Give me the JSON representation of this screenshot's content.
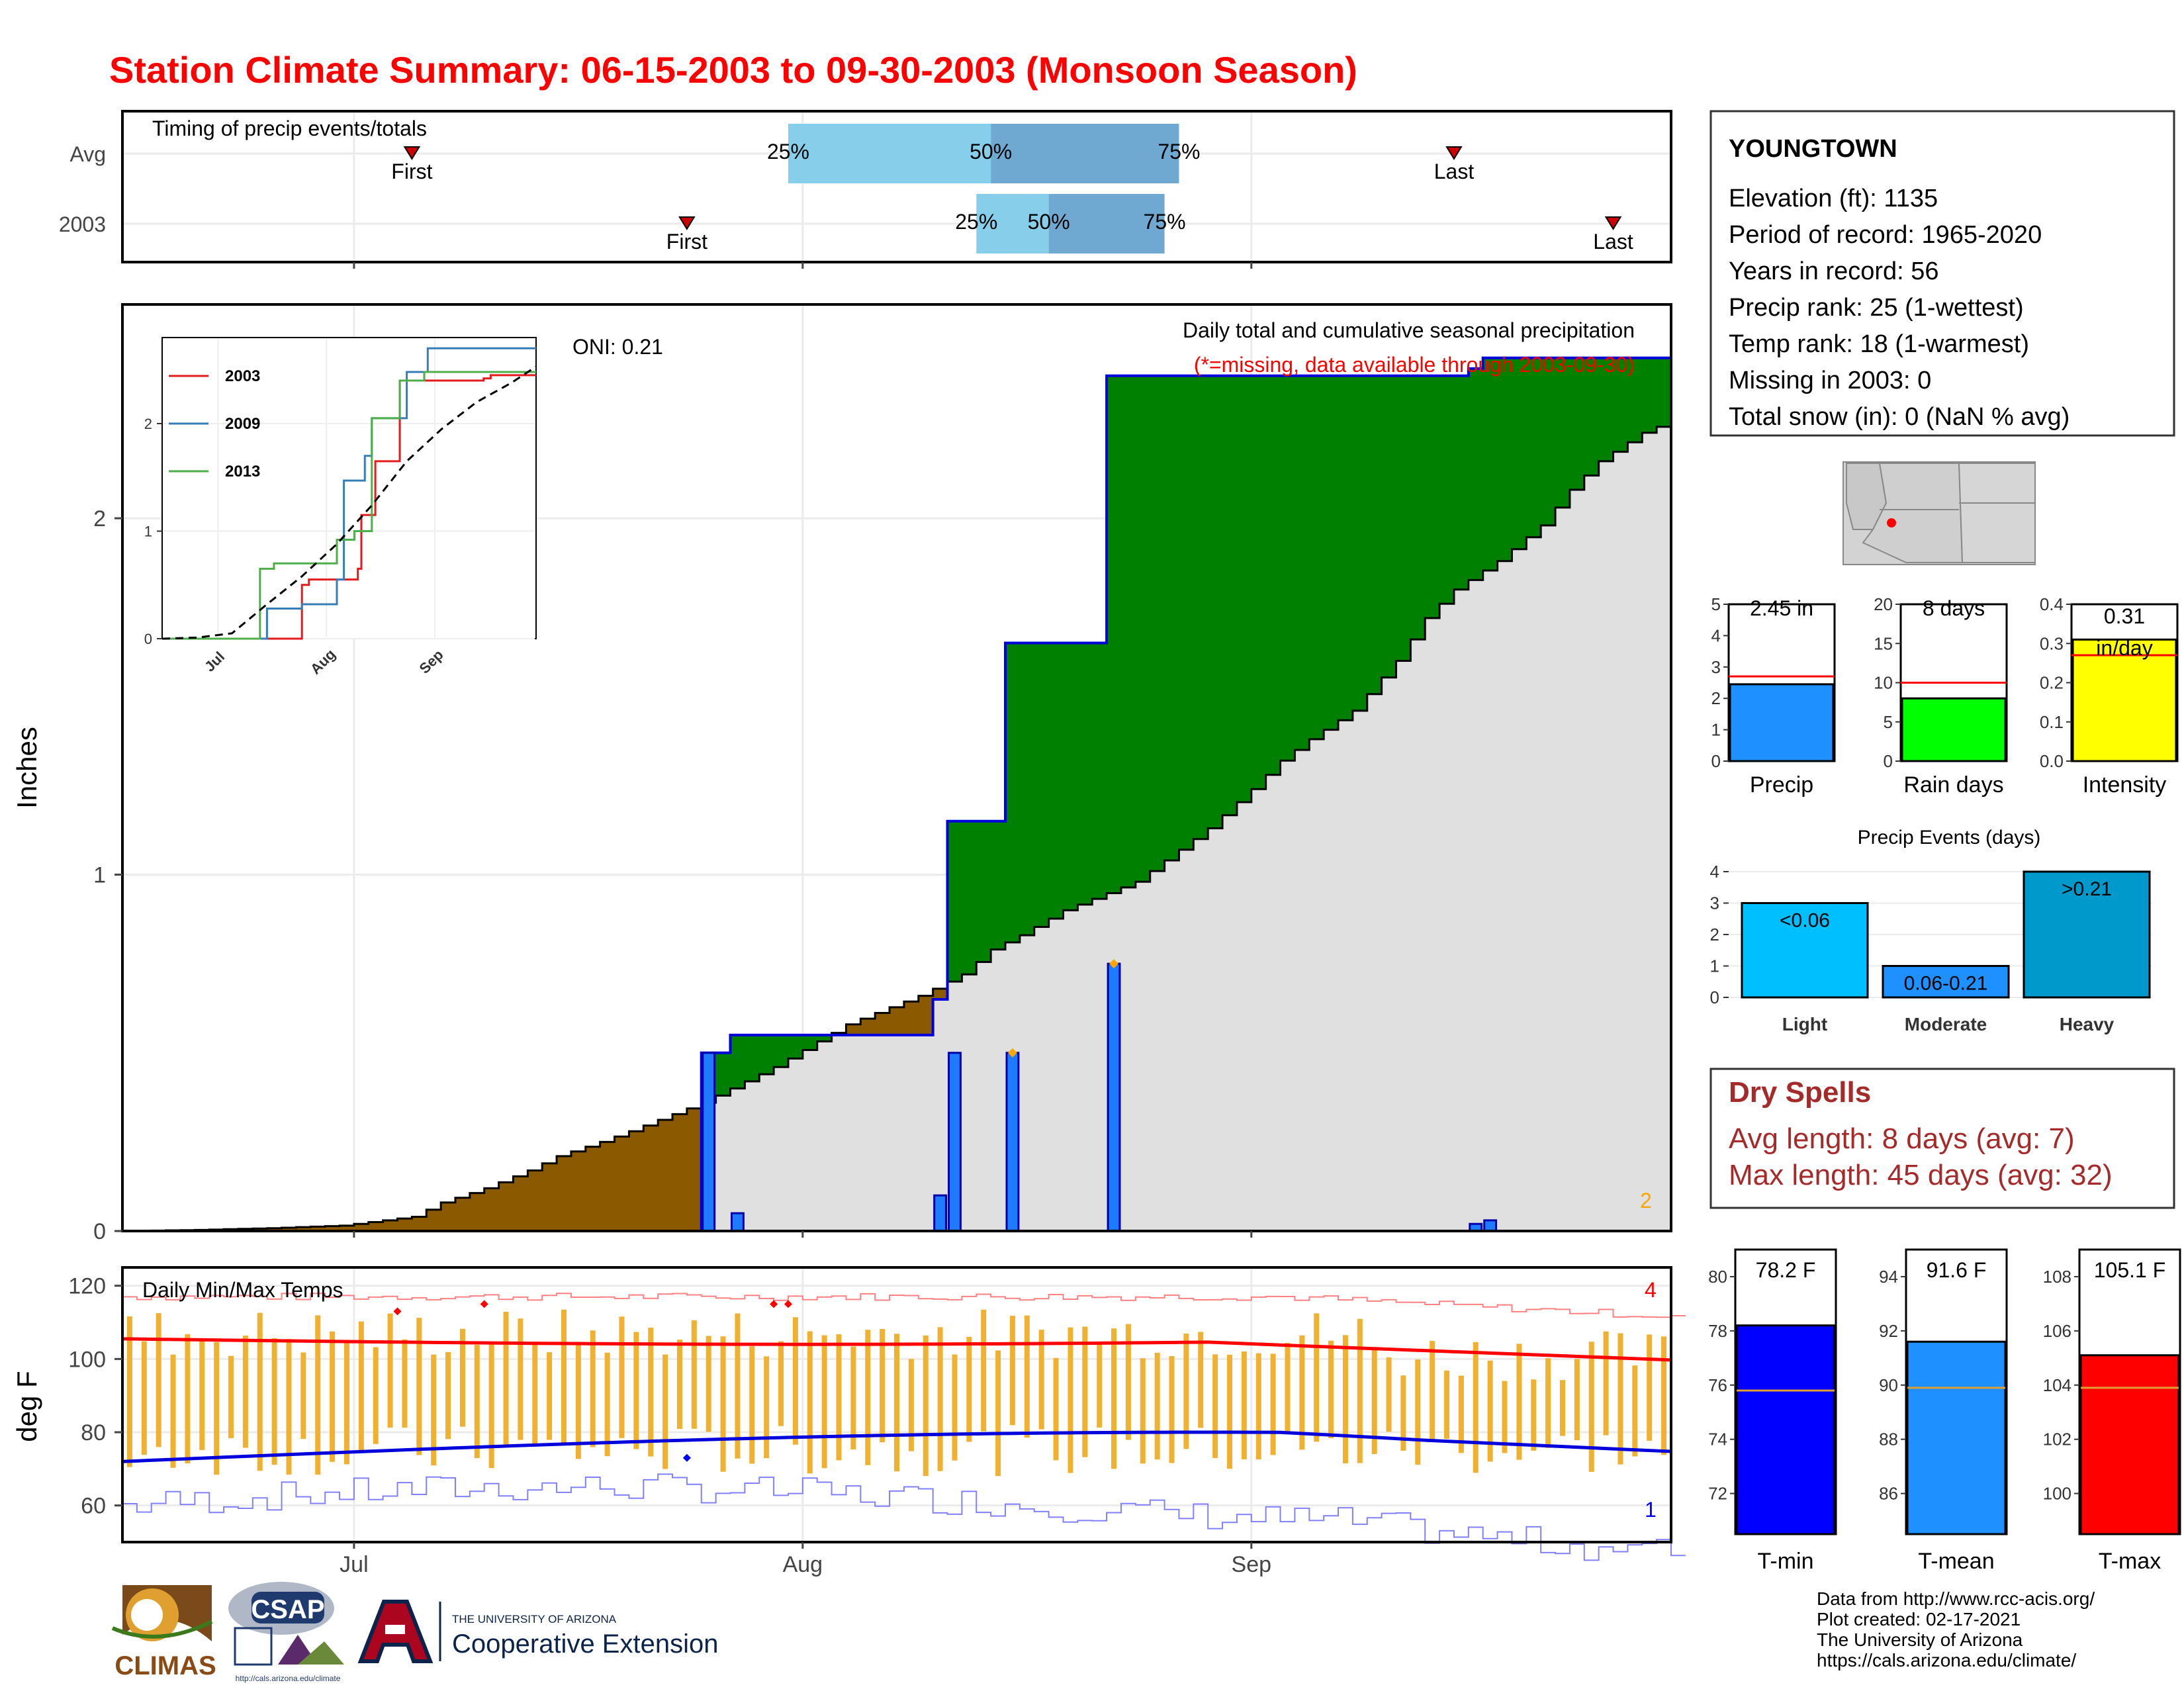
{
  "title": "Station Climate Summary: 06-15-2003 to 09-30-2003 (Monsoon Season)",
  "colors": {
    "title": "#ff0000",
    "brown": "#8B5A00",
    "green": "#008000",
    "grey_fill": "#e0e0e0",
    "blue_line": "#0000dd",
    "daily_bar": "#1e7bff",
    "light_blue": "#87ceeb",
    "steel_blue": "#6fa8d0",
    "temp_bar": "#f0b030",
    "dry_spell": "#a52a2a"
  },
  "chart_data": [
    {
      "id": "timing",
      "type": "bar",
      "title": "Timing of precip events/totals",
      "rows": [
        "Avg",
        "2003"
      ],
      "x_domain": [
        "06-15",
        "09-30"
      ],
      "markers": [
        {
          "row": "Avg",
          "first": "07-05",
          "last": "09-15",
          "q25": "07-31",
          "q50": "08-14",
          "q75": "08-27"
        },
        {
          "row": "2003",
          "first": "07-24",
          "last": "09-26",
          "q25": "08-13",
          "q50": "08-18",
          "q75": "08-26"
        }
      ],
      "labels": {
        "first": "First",
        "last": "Last",
        "q25": "25%",
        "q50": "50%",
        "q75": "75%"
      }
    },
    {
      "id": "precip",
      "type": "area",
      "ylabel": "Inches",
      "y_ticks": [
        "0",
        "1",
        "2"
      ],
      "ylim": [
        0,
        2.6
      ],
      "x_ticks": [
        "Jul",
        "Aug",
        "Sep"
      ],
      "annotation_title": "Daily total and cumulative seasonal precipitation",
      "annotation_missing": "(*=missing, data available through 2003-09-30)",
      "oni": "ONI: 0.21",
      "corner_count": "2",
      "avg_cumulative": [
        [
          0,
          0
        ],
        [
          5,
          0.003
        ],
        [
          10,
          0.008
        ],
        [
          15,
          0.015
        ],
        [
          20,
          0.04
        ],
        [
          22,
          0.08
        ],
        [
          25,
          0.12
        ],
        [
          28,
          0.17
        ],
        [
          30,
          0.21
        ],
        [
          33,
          0.25
        ],
        [
          35,
          0.28
        ],
        [
          40,
          0.36
        ],
        [
          45,
          0.46
        ],
        [
          50,
          0.58
        ],
        [
          55,
          0.66
        ],
        [
          58,
          0.72
        ],
        [
          60,
          0.79
        ],
        [
          62,
          0.83
        ],
        [
          65,
          0.9
        ],
        [
          70,
          0.98
        ],
        [
          75,
          1.13
        ],
        [
          78,
          1.24
        ],
        [
          80,
          1.32
        ],
        [
          82,
          1.38
        ],
        [
          85,
          1.46
        ],
        [
          88,
          1.6
        ],
        [
          90,
          1.72
        ],
        [
          92,
          1.8
        ],
        [
          95,
          1.88
        ],
        [
          98,
          1.98
        ],
        [
          100,
          2.08
        ],
        [
          102,
          2.16
        ],
        [
          105,
          2.24
        ],
        [
          108,
          2.29
        ],
        [
          110,
          2.33
        ],
        [
          113,
          2.43
        ],
        [
          116,
          2.47
        ],
        [
          120,
          2.53
        ]
      ],
      "daily_2003": [
        {
          "day": 40,
          "value": 0.5
        },
        {
          "day": 42,
          "value": 0.05
        },
        {
          "day": 56,
          "value": 0.1
        },
        {
          "day": 57,
          "value": 0.5
        },
        {
          "day": 61,
          "value": 0.5
        },
        {
          "day": 68,
          "value": 0.75
        },
        {
          "day": 93,
          "value": 0.02
        },
        {
          "day": 94,
          "value": 0.03
        }
      ],
      "highlight_days": [
        61,
        68
      ]
    },
    {
      "id": "inset",
      "type": "line",
      "y_ticks": [
        "0",
        "1",
        "2"
      ],
      "x_ticks": [
        "Jul",
        "Aug",
        "Sep"
      ],
      "series": [
        {
          "name": "2003",
          "color": "#e41a1c",
          "points": [
            [
              0,
              0
            ],
            [
              40,
              0
            ],
            [
              40,
              0.5
            ],
            [
              42,
              0.5
            ],
            [
              42,
              0.55
            ],
            [
              56,
              0.55
            ],
            [
              56,
              0.65
            ],
            [
              57,
              0.65
            ],
            [
              57,
              1.15
            ],
            [
              61,
              1.15
            ],
            [
              61,
              1.65
            ],
            [
              68,
              1.65
            ],
            [
              68,
              2.4
            ],
            [
              92,
              2.4
            ],
            [
              92,
              2.42
            ],
            [
              94,
              2.42
            ],
            [
              94,
              2.45
            ],
            [
              107,
              2.45
            ]
          ]
        },
        {
          "name": "2009",
          "color": "#377eb8",
          "points": [
            [
              0,
              0
            ],
            [
              30,
              0
            ],
            [
              30,
              0.28
            ],
            [
              40,
              0.28
            ],
            [
              40,
              0.32
            ],
            [
              50,
              0.32
            ],
            [
              50,
              0.55
            ],
            [
              52,
              0.55
            ],
            [
              52,
              1.47
            ],
            [
              58,
              1.47
            ],
            [
              58,
              1.7
            ],
            [
              60,
              1.7
            ],
            [
              60,
              2.05
            ],
            [
              70,
              2.05
            ],
            [
              70,
              2.48
            ],
            [
              76,
              2.48
            ],
            [
              76,
              2.7
            ],
            [
              107,
              2.7
            ]
          ]
        },
        {
          "name": "2013",
          "color": "#4daf4a",
          "points": [
            [
              0,
              0
            ],
            [
              28,
              0
            ],
            [
              28,
              0.65
            ],
            [
              32,
              0.65
            ],
            [
              32,
              0.7
            ],
            [
              50,
              0.7
            ],
            [
              50,
              0.92
            ],
            [
              55,
              0.92
            ],
            [
              55,
              1.0
            ],
            [
              60,
              1.0
            ],
            [
              60,
              2.05
            ],
            [
              68,
              2.05
            ],
            [
              68,
              2.4
            ],
            [
              75,
              2.4
            ],
            [
              75,
              2.48
            ],
            [
              107,
              2.48
            ]
          ]
        }
      ],
      "avg_line": [
        [
          0,
          0
        ],
        [
          10,
          0.01
        ],
        [
          20,
          0.05
        ],
        [
          30,
          0.32
        ],
        [
          40,
          0.58
        ],
        [
          50,
          0.88
        ],
        [
          60,
          1.24
        ],
        [
          70,
          1.65
        ],
        [
          80,
          1.95
        ],
        [
          90,
          2.2
        ],
        [
          100,
          2.38
        ],
        [
          107,
          2.53
        ]
      ]
    },
    {
      "id": "temps",
      "type": "line",
      "title": "Daily Min/Max Temps",
      "ylabel": "deg F",
      "y_ticks": [
        "60",
        "80",
        "100",
        "120"
      ],
      "ylim": [
        50,
        125
      ],
      "x_ticks": [
        "Jul",
        "Aug",
        "Sep"
      ],
      "count_high": "4",
      "count_low": "1"
    },
    {
      "id": "small_bars",
      "type": "bar",
      "panels": [
        {
          "name": "Precip",
          "label": "2.45 in",
          "value": 2.45,
          "avg": 2.7,
          "ymax": 5,
          "ticks": [
            "0",
            "1",
            "2",
            "3",
            "4",
            "5"
          ],
          "color": "#1e90ff"
        },
        {
          "name": "Rain days",
          "label": "8 days",
          "value": 8,
          "avg": 10,
          "ymax": 20,
          "ticks": [
            "0",
            "5",
            "10",
            "15",
            "20"
          ],
          "color": "#00ff00"
        },
        {
          "name": "Intensity",
          "label": "0.31 in/day",
          "value": 0.31,
          "avg": 0.27,
          "ymax": 0.4,
          "ticks": [
            "0.0",
            "0.1",
            "0.2",
            "0.3",
            "0.4"
          ],
          "color": "#ffff00"
        }
      ]
    },
    {
      "id": "events",
      "type": "bar",
      "title": "Precip Events (days)",
      "categories": [
        "Light",
        "Moderate",
        "Heavy"
      ],
      "values": [
        3,
        1,
        4
      ],
      "labels": [
        "<0.06",
        "0.06-0.21",
        ">0.21"
      ],
      "y_ticks": [
        "0",
        "1",
        "2",
        "3",
        "4"
      ]
    },
    {
      "id": "temp_bars",
      "type": "bar",
      "panels": [
        {
          "name": "T-min",
          "label": "78.2 F",
          "value": 78.2,
          "avg": 75.8,
          "ymin": 70.5,
          "ymax": 81,
          "ticks": [
            "72",
            "74",
            "76",
            "78",
            "80"
          ],
          "color": "#0000ff"
        },
        {
          "name": "T-mean",
          "label": "91.6 F",
          "value": 91.6,
          "avg": 89.9,
          "ymin": 84.5,
          "ymax": 95,
          "ticks": [
            "86",
            "88",
            "90",
            "92",
            "94"
          ],
          "color": "#1e90ff"
        },
        {
          "name": "T-max",
          "label": "105.1 F",
          "value": 105.1,
          "avg": 103.9,
          "ymin": 98.5,
          "ymax": 109,
          "ticks": [
            "100",
            "102",
            "104",
            "106",
            "108"
          ],
          "color": "#ff0000"
        }
      ]
    }
  ],
  "station": {
    "name": "YOUNGTOWN",
    "lines": [
      "Elevation (ft): 1135",
      "Period of record: 1965-2020",
      "Years in record: 56",
      "Precip rank: 25 (1-wettest)",
      "Temp rank: 18 (1-warmest)",
      "Missing in 2003: 0",
      "Total snow (in): 0 (NaN % avg)"
    ]
  },
  "dry_spells": {
    "title": "Dry Spells",
    "avg": "Avg length: 8 days (avg: 7)",
    "max": "Max length: 45 days (avg: 32)"
  },
  "credits": [
    "Data from http://www.rcc-acis.org/",
    "Plot created: 02-17-2021",
    "The University of Arizona",
    "https://cals.arizona.edu/climate/"
  ],
  "logos": {
    "climas": "CLIMAS",
    "csap": "CSAP",
    "csap_url": "http://cals.arizona.edu/climate",
    "ua_small": "THE UNIVERSITY OF ARIZONA",
    "ua_big": "Cooperative Extension"
  }
}
